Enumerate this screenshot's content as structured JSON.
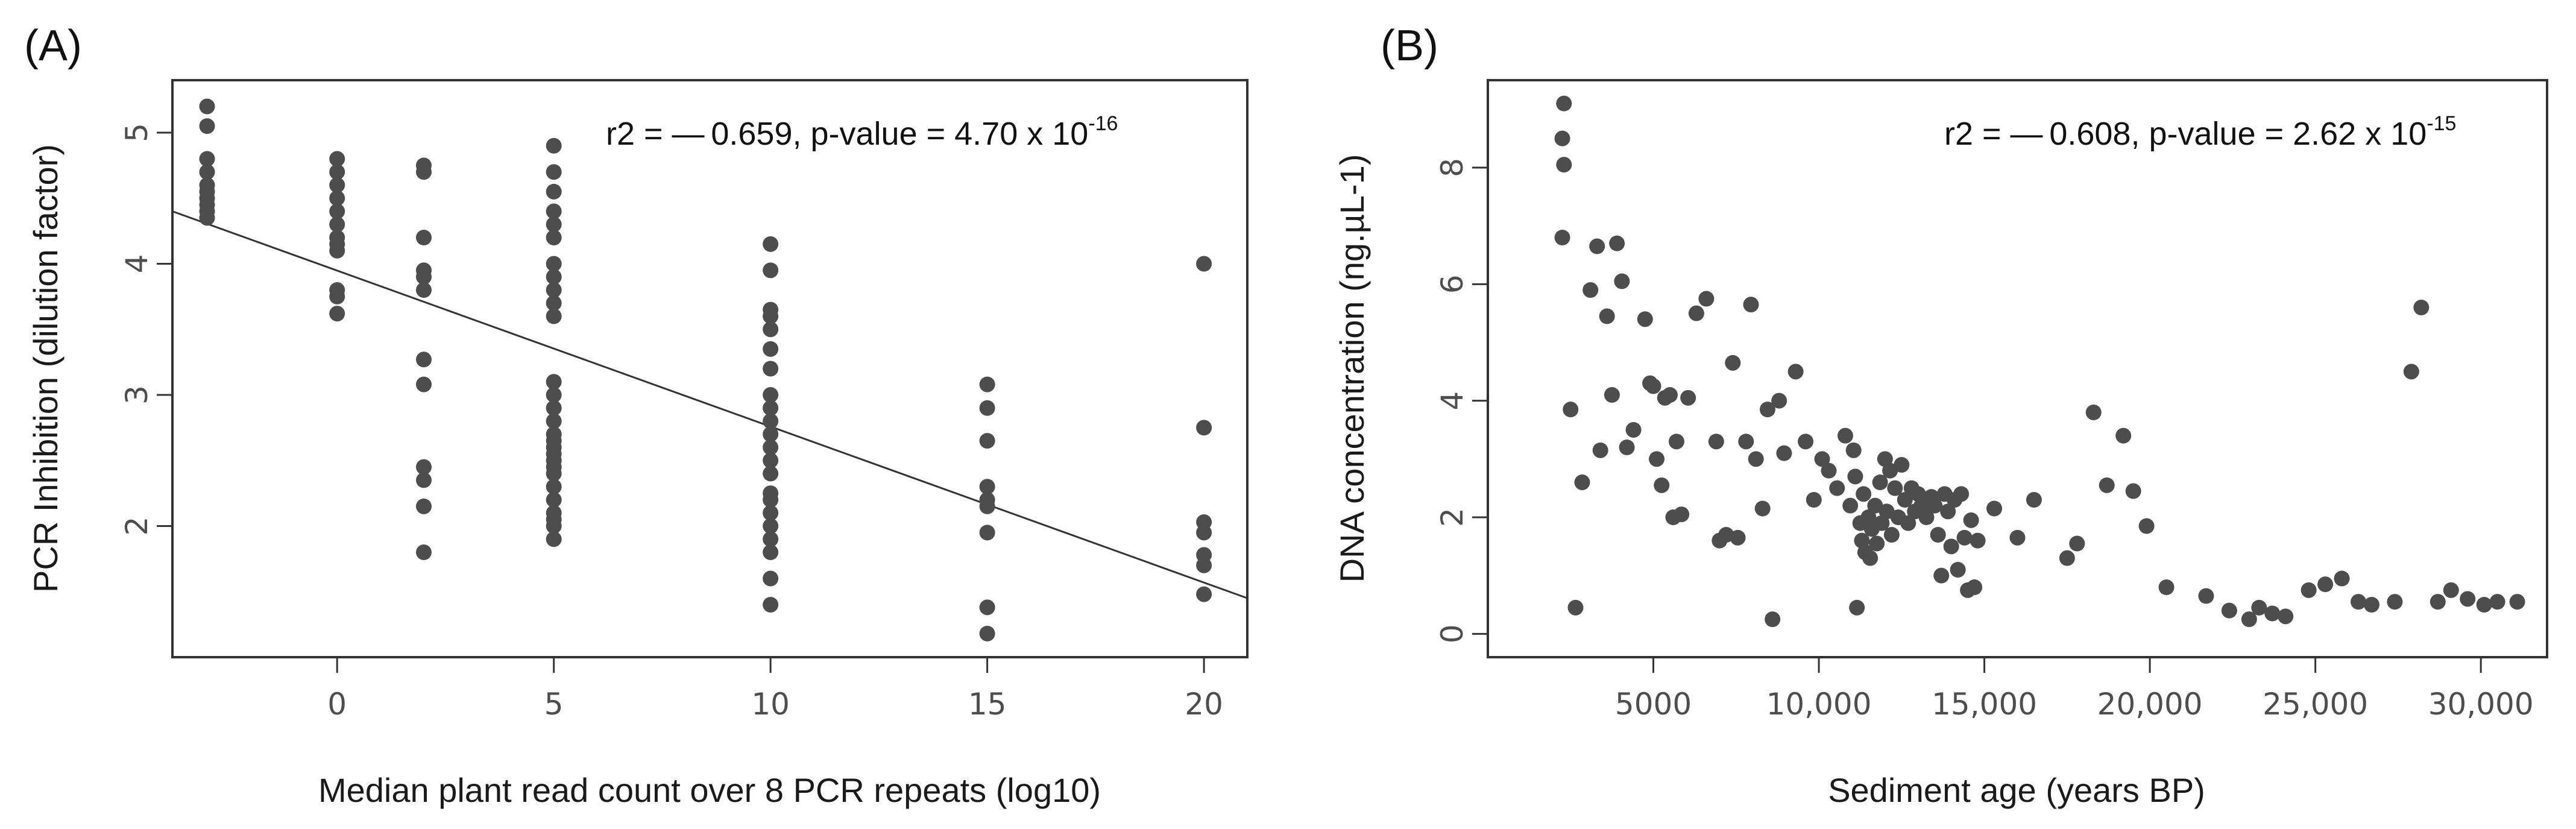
{
  "chart_data": [
    {
      "type": "scatter",
      "panel_label": "(A)",
      "xlabel": "Median plant read count over 8 PCR repeats (log10)",
      "ylabel": "PCR Inhibition (dilution factor)",
      "xlim": [
        -3.8,
        21
      ],
      "ylim": [
        1.0,
        5.4
      ],
      "xticks": [
        0,
        5,
        10,
        15,
        20
      ],
      "xtick_labels": [
        "0",
        "5",
        "10",
        "15",
        "20"
      ],
      "yticks": [
        2,
        3,
        4,
        5
      ],
      "ytick_labels": [
        "2",
        "3",
        "4",
        "5"
      ],
      "annotation": {
        "text": "r2 = — 0.659, p-value = 4.70 x 10",
        "sup": "-16"
      },
      "trendline": {
        "x": [
          -3.8,
          21
        ],
        "y": [
          4.4,
          1.45
        ]
      },
      "point_color": "#4d4d4d",
      "line_color": "#333333",
      "points": [
        {
          "x": -3,
          "y": 5.2
        },
        {
          "x": -3,
          "y": 5.05
        },
        {
          "x": -3,
          "y": 4.8
        },
        {
          "x": -3,
          "y": 4.7
        },
        {
          "x": -3,
          "y": 4.6
        },
        {
          "x": -3,
          "y": 4.55
        },
        {
          "x": -3,
          "y": 4.5
        },
        {
          "x": -3,
          "y": 4.45
        },
        {
          "x": -3,
          "y": 4.4
        },
        {
          "x": -3,
          "y": 4.35
        },
        {
          "x": 0,
          "y": 4.8
        },
        {
          "x": 0,
          "y": 4.7
        },
        {
          "x": 0,
          "y": 4.6
        },
        {
          "x": 0,
          "y": 4.5
        },
        {
          "x": 0,
          "y": 4.4
        },
        {
          "x": 0,
          "y": 4.3
        },
        {
          "x": 0,
          "y": 4.2
        },
        {
          "x": 0,
          "y": 4.15
        },
        {
          "x": 0,
          "y": 4.1
        },
        {
          "x": 0,
          "y": 3.8
        },
        {
          "x": 0,
          "y": 3.75
        },
        {
          "x": 0,
          "y": 3.62
        },
        {
          "x": 2,
          "y": 4.75
        },
        {
          "x": 2,
          "y": 4.7
        },
        {
          "x": 2,
          "y": 4.2
        },
        {
          "x": 2,
          "y": 3.95
        },
        {
          "x": 2,
          "y": 3.9
        },
        {
          "x": 2,
          "y": 3.8
        },
        {
          "x": 2,
          "y": 3.27
        },
        {
          "x": 2,
          "y": 3.08
        },
        {
          "x": 2,
          "y": 2.45
        },
        {
          "x": 2,
          "y": 2.35
        },
        {
          "x": 2,
          "y": 2.15
        },
        {
          "x": 2,
          "y": 1.8
        },
        {
          "x": 5,
          "y": 4.9
        },
        {
          "x": 5,
          "y": 4.7
        },
        {
          "x": 5,
          "y": 4.55
        },
        {
          "x": 5,
          "y": 4.4
        },
        {
          "x": 5,
          "y": 4.3
        },
        {
          "x": 5,
          "y": 4.2
        },
        {
          "x": 5,
          "y": 4.0
        },
        {
          "x": 5,
          "y": 3.9
        },
        {
          "x": 5,
          "y": 3.8
        },
        {
          "x": 5,
          "y": 3.7
        },
        {
          "x": 5,
          "y": 3.6
        },
        {
          "x": 5,
          "y": 3.1
        },
        {
          "x": 5,
          "y": 3.0
        },
        {
          "x": 5,
          "y": 2.9
        },
        {
          "x": 5,
          "y": 2.8
        },
        {
          "x": 5,
          "y": 2.7
        },
        {
          "x": 5,
          "y": 2.65
        },
        {
          "x": 5,
          "y": 2.6
        },
        {
          "x": 5,
          "y": 2.55
        },
        {
          "x": 5,
          "y": 2.5
        },
        {
          "x": 5,
          "y": 2.45
        },
        {
          "x": 5,
          "y": 2.4
        },
        {
          "x": 5,
          "y": 2.3
        },
        {
          "x": 5,
          "y": 2.2
        },
        {
          "x": 5,
          "y": 2.1
        },
        {
          "x": 5,
          "y": 2.05
        },
        {
          "x": 5,
          "y": 2.0
        },
        {
          "x": 5,
          "y": 1.9
        },
        {
          "x": 10,
          "y": 4.15
        },
        {
          "x": 10,
          "y": 3.95
        },
        {
          "x": 10,
          "y": 3.65
        },
        {
          "x": 10,
          "y": 3.6
        },
        {
          "x": 10,
          "y": 3.5
        },
        {
          "x": 10,
          "y": 3.35
        },
        {
          "x": 10,
          "y": 3.2
        },
        {
          "x": 10,
          "y": 3.0
        },
        {
          "x": 10,
          "y": 2.9
        },
        {
          "x": 10,
          "y": 2.8
        },
        {
          "x": 10,
          "y": 2.7
        },
        {
          "x": 10,
          "y": 2.6
        },
        {
          "x": 10,
          "y": 2.5
        },
        {
          "x": 10,
          "y": 2.4
        },
        {
          "x": 10,
          "y": 2.25
        },
        {
          "x": 10,
          "y": 2.2
        },
        {
          "x": 10,
          "y": 2.1
        },
        {
          "x": 10,
          "y": 2.0
        },
        {
          "x": 10,
          "y": 1.9
        },
        {
          "x": 10,
          "y": 1.8
        },
        {
          "x": 10,
          "y": 1.6
        },
        {
          "x": 10,
          "y": 1.4
        },
        {
          "x": 15,
          "y": 3.08
        },
        {
          "x": 15,
          "y": 2.9
        },
        {
          "x": 15,
          "y": 2.65
        },
        {
          "x": 15,
          "y": 2.3
        },
        {
          "x": 15,
          "y": 2.2
        },
        {
          "x": 15,
          "y": 2.15
        },
        {
          "x": 15,
          "y": 1.95
        },
        {
          "x": 15,
          "y": 1.38
        },
        {
          "x": 15,
          "y": 1.18
        },
        {
          "x": 20,
          "y": 4.0
        },
        {
          "x": 20,
          "y": 2.75
        },
        {
          "x": 20,
          "y": 2.03
        },
        {
          "x": 20,
          "y": 1.95
        },
        {
          "x": 20,
          "y": 1.78
        },
        {
          "x": 20,
          "y": 1.7
        },
        {
          "x": 20,
          "y": 1.48
        }
      ]
    },
    {
      "type": "scatter",
      "panel_label": "(B)",
      "xlabel": "Sediment age (years BP)",
      "ylabel": "DNA concentration  (ng.µL-1)",
      "xlim": [
        0,
        32000
      ],
      "ylim": [
        -0.4,
        9.5
      ],
      "xticks": [
        5000,
        10000,
        15000,
        20000,
        25000,
        30000
      ],
      "xtick_labels": [
        "5000",
        "10,000",
        "15,000",
        "20,000",
        "25,000",
        "30,000"
      ],
      "yticks": [
        0,
        2,
        4,
        6,
        8
      ],
      "ytick_labels": [
        "0",
        "2",
        "4",
        "6",
        "8"
      ],
      "annotation": {
        "text": "r2 = — 0.608, p-value = 2.62 x 10",
        "sup": "-15"
      },
      "point_color": "#4d4d4d",
      "points": [
        {
          "x": 2300,
          "y": 9.1
        },
        {
          "x": 2250,
          "y": 8.5
        },
        {
          "x": 2300,
          "y": 8.05
        },
        {
          "x": 2250,
          "y": 6.8
        },
        {
          "x": 2500,
          "y": 3.85
        },
        {
          "x": 2650,
          "y": 0.45
        },
        {
          "x": 2850,
          "y": 2.6
        },
        {
          "x": 3100,
          "y": 5.9
        },
        {
          "x": 3300,
          "y": 6.65
        },
        {
          "x": 3400,
          "y": 3.15
        },
        {
          "x": 3600,
          "y": 5.45
        },
        {
          "x": 3750,
          "y": 4.1
        },
        {
          "x": 3900,
          "y": 6.7
        },
        {
          "x": 4050,
          "y": 6.05
        },
        {
          "x": 4200,
          "y": 3.2
        },
        {
          "x": 4400,
          "y": 3.5
        },
        {
          "x": 4750,
          "y": 5.4
        },
        {
          "x": 4900,
          "y": 4.3
        },
        {
          "x": 5000,
          "y": 4.25
        },
        {
          "x": 5100,
          "y": 3.0
        },
        {
          "x": 5250,
          "y": 2.55
        },
        {
          "x": 5350,
          "y": 4.05
        },
        {
          "x": 5500,
          "y": 4.1
        },
        {
          "x": 5600,
          "y": 2.0
        },
        {
          "x": 5700,
          "y": 3.3
        },
        {
          "x": 5850,
          "y": 2.05
        },
        {
          "x": 6050,
          "y": 4.05
        },
        {
          "x": 6300,
          "y": 5.5
        },
        {
          "x": 6600,
          "y": 5.75
        },
        {
          "x": 6900,
          "y": 3.3
        },
        {
          "x": 7000,
          "y": 1.6
        },
        {
          "x": 7200,
          "y": 1.7
        },
        {
          "x": 7400,
          "y": 4.65
        },
        {
          "x": 7550,
          "y": 1.65
        },
        {
          "x": 7800,
          "y": 3.3
        },
        {
          "x": 7950,
          "y": 5.65
        },
        {
          "x": 8100,
          "y": 3.0
        },
        {
          "x": 8300,
          "y": 2.15
        },
        {
          "x": 8450,
          "y": 3.85
        },
        {
          "x": 8600,
          "y": 0.25
        },
        {
          "x": 8800,
          "y": 4.0
        },
        {
          "x": 8950,
          "y": 3.1
        },
        {
          "x": 9300,
          "y": 4.5
        },
        {
          "x": 9600,
          "y": 3.3
        },
        {
          "x": 9850,
          "y": 2.3
        },
        {
          "x": 10100,
          "y": 3.0
        },
        {
          "x": 10300,
          "y": 2.8
        },
        {
          "x": 10550,
          "y": 2.5
        },
        {
          "x": 10800,
          "y": 3.4
        },
        {
          "x": 10950,
          "y": 2.2
        },
        {
          "x": 11050,
          "y": 3.15
        },
        {
          "x": 11100,
          "y": 2.7
        },
        {
          "x": 11150,
          "y": 0.45
        },
        {
          "x": 11250,
          "y": 1.9
        },
        {
          "x": 11300,
          "y": 1.6
        },
        {
          "x": 11350,
          "y": 2.4
        },
        {
          "x": 11400,
          "y": 1.4
        },
        {
          "x": 11500,
          "y": 2.0
        },
        {
          "x": 11550,
          "y": 1.3
        },
        {
          "x": 11600,
          "y": 1.8
        },
        {
          "x": 11700,
          "y": 2.2
        },
        {
          "x": 11750,
          "y": 1.55
        },
        {
          "x": 11850,
          "y": 2.6
        },
        {
          "x": 11900,
          "y": 1.9
        },
        {
          "x": 12000,
          "y": 3.0
        },
        {
          "x": 12050,
          "y": 2.1
        },
        {
          "x": 12150,
          "y": 2.8
        },
        {
          "x": 12200,
          "y": 1.7
        },
        {
          "x": 12300,
          "y": 2.5
        },
        {
          "x": 12400,
          "y": 2.0
        },
        {
          "x": 12500,
          "y": 2.9
        },
        {
          "x": 12600,
          "y": 2.3
        },
        {
          "x": 12700,
          "y": 1.9
        },
        {
          "x": 12800,
          "y": 2.5
        },
        {
          "x": 12900,
          "y": 2.1
        },
        {
          "x": 13000,
          "y": 2.4
        },
        {
          "x": 13100,
          "y": 2.2
        },
        {
          "x": 13250,
          "y": 2.0
        },
        {
          "x": 13400,
          "y": 2.35
        },
        {
          "x": 13500,
          "y": 2.2
        },
        {
          "x": 13600,
          "y": 1.7
        },
        {
          "x": 13700,
          "y": 1.0
        },
        {
          "x": 13800,
          "y": 2.4
        },
        {
          "x": 13900,
          "y": 2.1
        },
        {
          "x": 14000,
          "y": 1.5
        },
        {
          "x": 14100,
          "y": 2.3
        },
        {
          "x": 14200,
          "y": 1.1
        },
        {
          "x": 14300,
          "y": 2.4
        },
        {
          "x": 14400,
          "y": 1.65
        },
        {
          "x": 14500,
          "y": 0.75
        },
        {
          "x": 14600,
          "y": 1.95
        },
        {
          "x": 14700,
          "y": 0.8
        },
        {
          "x": 14800,
          "y": 1.6
        },
        {
          "x": 15300,
          "y": 2.15
        },
        {
          "x": 16000,
          "y": 1.65
        },
        {
          "x": 16500,
          "y": 2.3
        },
        {
          "x": 17500,
          "y": 1.3
        },
        {
          "x": 17800,
          "y": 1.55
        },
        {
          "x": 18300,
          "y": 3.8
        },
        {
          "x": 18700,
          "y": 2.55
        },
        {
          "x": 19200,
          "y": 3.4
        },
        {
          "x": 19500,
          "y": 2.45
        },
        {
          "x": 19900,
          "y": 1.85
        },
        {
          "x": 20500,
          "y": 0.8
        },
        {
          "x": 21700,
          "y": 0.65
        },
        {
          "x": 22400,
          "y": 0.4
        },
        {
          "x": 23000,
          "y": 0.25
        },
        {
          "x": 23300,
          "y": 0.45
        },
        {
          "x": 23700,
          "y": 0.35
        },
        {
          "x": 24100,
          "y": 0.3
        },
        {
          "x": 24800,
          "y": 0.75
        },
        {
          "x": 25300,
          "y": 0.85
        },
        {
          "x": 25800,
          "y": 0.95
        },
        {
          "x": 26300,
          "y": 0.55
        },
        {
          "x": 26700,
          "y": 0.5
        },
        {
          "x": 27400,
          "y": 0.55
        },
        {
          "x": 27900,
          "y": 4.5
        },
        {
          "x": 28200,
          "y": 5.6
        },
        {
          "x": 28700,
          "y": 0.55
        },
        {
          "x": 29100,
          "y": 0.75
        },
        {
          "x": 29600,
          "y": 0.6
        },
        {
          "x": 30100,
          "y": 0.5
        },
        {
          "x": 30500,
          "y": 0.55
        },
        {
          "x": 31100,
          "y": 0.55
        }
      ]
    }
  ]
}
